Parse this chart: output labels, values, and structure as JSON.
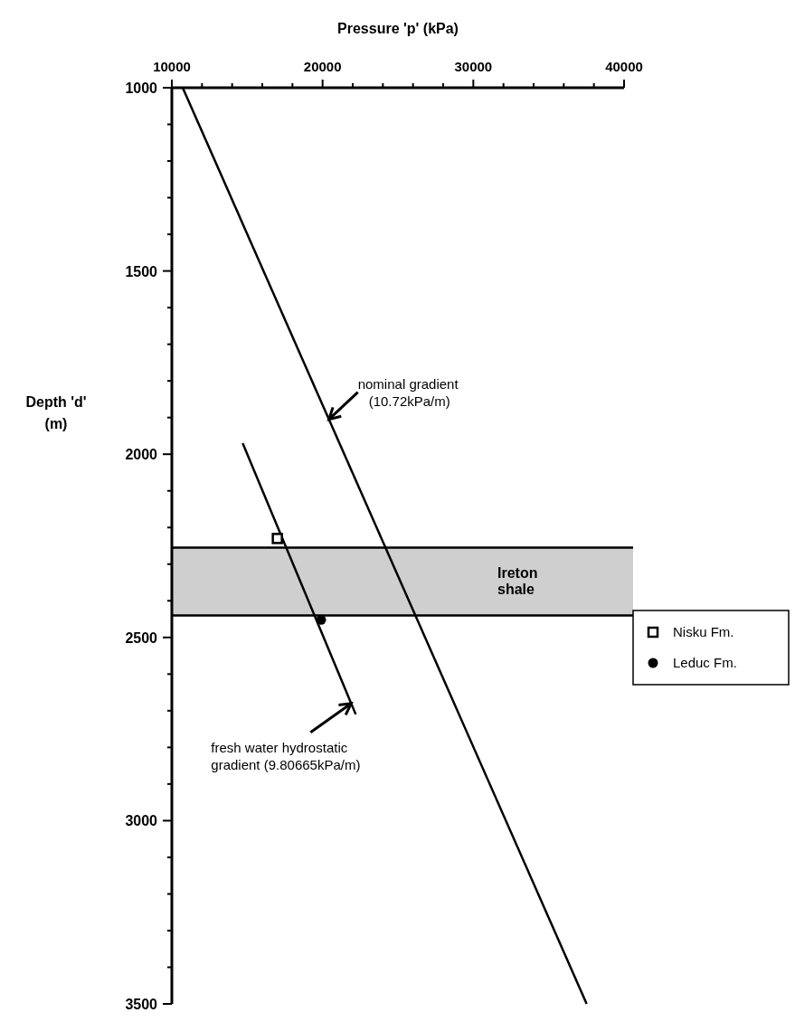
{
  "chart_data": {
    "type": "line",
    "xlabel": "Pressure 'p' (kPa)",
    "ylabel": "Depth 'd'\n(m)",
    "xlim": [
      10000,
      40000
    ],
    "xticks": [
      10000,
      {
        "value": 12000,
        "label": null
      },
      {
        "value": 14000,
        "label": null
      },
      {
        "value": 16000,
        "label": null
      },
      {
        "value": 18000,
        "label": null
      },
      20000,
      {
        "value": 22000,
        "label": null
      },
      {
        "value": 24000,
        "label": null
      },
      {
        "value": 26000,
        "label": null
      },
      {
        "value": 28000,
        "label": null
      },
      30000,
      {
        "value": 32000,
        "label": null
      },
      {
        "value": 34000,
        "label": null
      },
      {
        "value": 36000,
        "label": null
      },
      {
        "value": 38000,
        "label": null
      },
      40000
    ],
    "ylim": [
      3500,
      1000
    ],
    "yticks": [
      1000,
      {
        "value": 1100,
        "label": null
      },
      {
        "value": 1200,
        "label": null
      },
      {
        "value": 1300,
        "label": null
      },
      {
        "value": 1400,
        "label": null
      },
      1500,
      {
        "value": 1600,
        "label": null
      },
      {
        "value": 1700,
        "label": null
      },
      {
        "value": 1800,
        "label": null
      },
      {
        "value": 1900,
        "label": null
      },
      2000,
      {
        "value": 2100,
        "label": null
      },
      {
        "value": 2200,
        "label": null
      },
      {
        "value": 2300,
        "label": null
      },
      {
        "value": 2400,
        "label": null
      },
      2500,
      {
        "value": 2600,
        "label": null
      },
      {
        "value": 2700,
        "label": null
      },
      {
        "value": 2800,
        "label": null
      },
      {
        "value": 2900,
        "label": null
      },
      3000,
      {
        "value": 3100,
        "label": null
      },
      {
        "value": 3200,
        "label": null
      },
      {
        "value": 3300,
        "label": null
      },
      {
        "value": 3400,
        "label": null
      },
      3500
    ],
    "series": [
      {
        "color": "#000000",
        "x": [
          10720,
          37520
        ],
        "values": [
          1000,
          3500
        ]
      },
      {
        "color": "#000000",
        "x": [
          14700,
          22200
        ],
        "values": [
          1970,
          2710
        ]
      },
      {
        "type": "scatter",
        "name": "Nisku Fm.",
        "color": "#000000",
        "marker": "square",
        "x": [
          17000
        ],
        "values": [
          2230
        ]
      },
      {
        "type": "scatter",
        "name": "Leduc Fm.",
        "color": "#000000",
        "marker": "circle",
        "x": [
          19900
        ],
        "values": [
          2452
        ]
      }
    ],
    "bands": [
      {
        "axis": "y",
        "from": 2255,
        "to": 2440,
        "label": "Ireton\nshale",
        "color": "#cfcfcf"
      }
    ],
    "ref_lines": [
      {
        "axis": "y",
        "value": 2255,
        "color": "#000000"
      },
      {
        "axis": "y",
        "value": 2440,
        "color": "#000000"
      }
    ],
    "annotations": [
      {
        "text": "nominal gradient\n(10.72kPa/m)",
        "x": 20422,
        "y": 1905
      },
      {
        "text": "fresh water hydrostatic\ngradient (9.80665kPa/m)",
        "x": 21900,
        "y": 2680
      }
    ],
    "legend": "right",
    "grid": false
  }
}
